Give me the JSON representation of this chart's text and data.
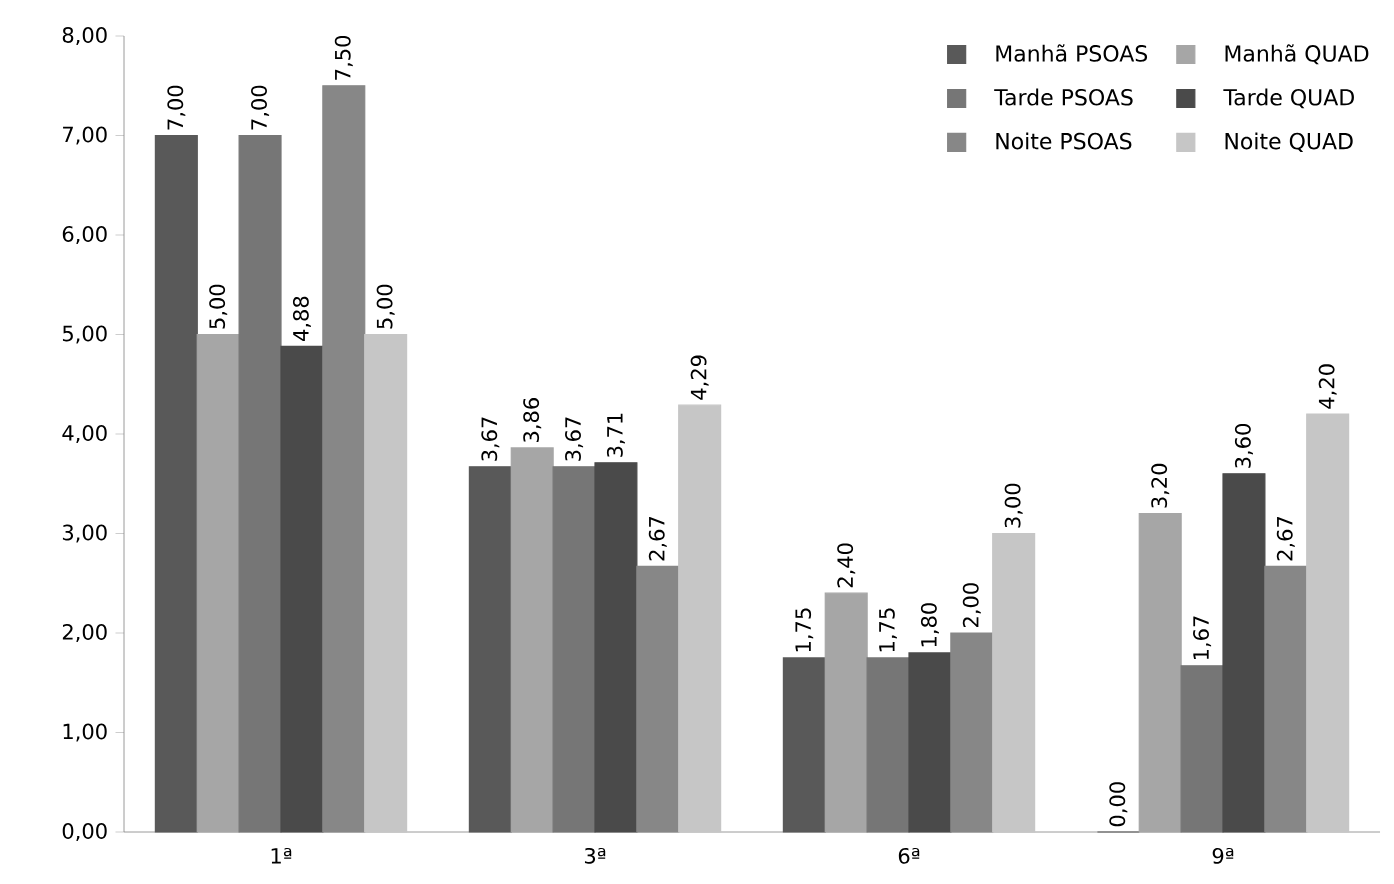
{
  "chart_data": {
    "type": "bar",
    "categories": [
      "1ª",
      "3ª",
      "6ª",
      "9ª"
    ],
    "series": [
      {
        "name": "Manhã PSOAS",
        "color": "#595959",
        "values": [
          7.0,
          3.67,
          1.75,
          0.0
        ],
        "value_labels": [
          "7,00",
          "3,67",
          "1,75",
          "0,00"
        ]
      },
      {
        "name": "Manhã QUAD",
        "color": "#a6a6a6",
        "values": [
          5.0,
          3.86,
          2.4,
          3.2
        ],
        "value_labels": [
          "5,00",
          "3,86",
          "2,40",
          "3,20"
        ]
      },
      {
        "name": "Tarde PSOAS",
        "color": "#767676",
        "values": [
          7.0,
          3.67,
          1.75,
          1.67
        ],
        "value_labels": [
          "7,00",
          "3,67",
          "1,75",
          "1,67"
        ]
      },
      {
        "name": "Tarde QUAD",
        "color": "#4a4a4a",
        "values": [
          4.88,
          3.71,
          1.8,
          3.6
        ],
        "value_labels": [
          "4,88",
          "3,71",
          "1,80",
          "3,60"
        ]
      },
      {
        "name": "Noite PSOAS",
        "color": "#878787",
        "values": [
          7.5,
          2.67,
          2.0,
          2.67
        ],
        "value_labels": [
          "7,50",
          "2,67",
          "2,00",
          "2,67"
        ]
      },
      {
        "name": "Noite QUAD",
        "color": "#c6c6c6",
        "values": [
          5.0,
          4.29,
          3.0,
          4.2
        ],
        "value_labels": [
          "5,00",
          "4,29",
          "3,00",
          "4,20"
        ]
      }
    ],
    "ylim": [
      0,
      8
    ],
    "yticks": [
      {
        "value": 0,
        "label": "0,00"
      },
      {
        "value": 1,
        "label": "1,00"
      },
      {
        "value": 2,
        "label": "2,00"
      },
      {
        "value": 3,
        "label": "3,00"
      },
      {
        "value": 4,
        "label": "4,00"
      },
      {
        "value": 5,
        "label": "5,00"
      },
      {
        "value": 6,
        "label": "6,00"
      },
      {
        "value": 7,
        "label": "7,00"
      },
      {
        "value": 8,
        "label": "8,00"
      }
    ],
    "grid": false,
    "legend": "top right"
  }
}
